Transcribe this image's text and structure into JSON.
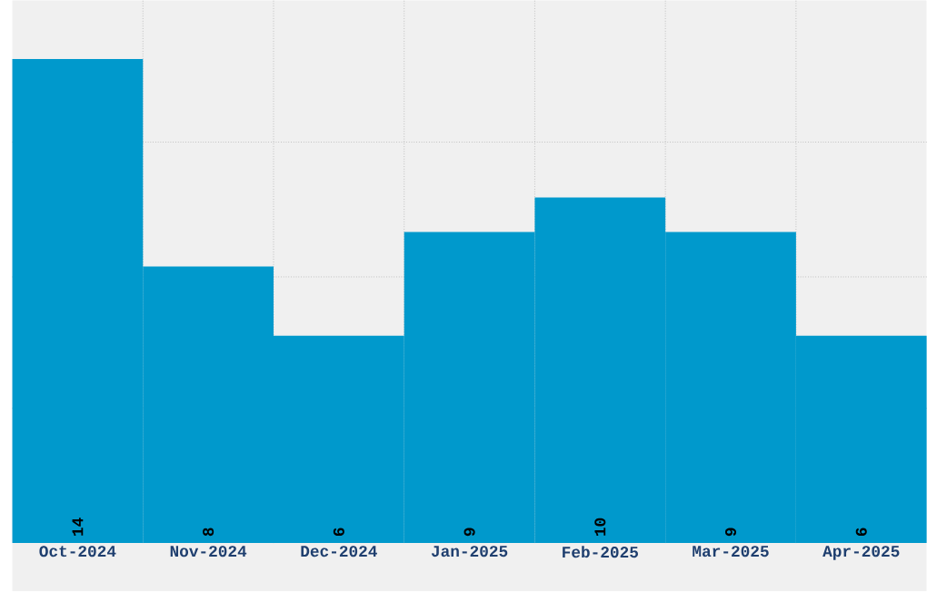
{
  "chart_data": {
    "type": "bar",
    "categories": [
      "Oct-2024",
      "Nov-2024",
      "Dec-2024",
      "Jan-2025",
      "Feb-2025",
      "Mar-2025",
      "Apr-2025"
    ],
    "values": [
      14,
      8,
      6,
      9,
      10,
      9,
      6
    ],
    "color": "#0099cc",
    "ylim": [
      0,
      15.7
    ],
    "yticks": [
      {
        "value": 3.9,
        "label": null
      },
      {
        "value": 7.7,
        "label": null
      },
      {
        "value": 11.6,
        "label": null
      }
    ],
    "tick_labels": "x",
    "grid": true,
    "data_labels": true
  }
}
